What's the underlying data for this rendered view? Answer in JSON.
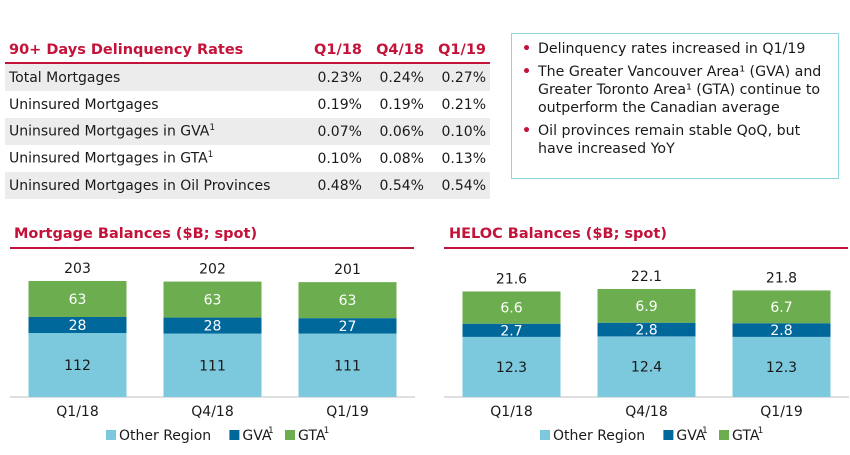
{
  "table": {
    "title": "90+ Days Delinquency Rates",
    "columns": [
      "Q1/18",
      "Q4/18",
      "Q1/19"
    ],
    "rows": [
      {
        "label": "Total Mortgages",
        "sup": "",
        "values": [
          "0.23%",
          "0.24%",
          "0.27%"
        ]
      },
      {
        "label": "Uninsured Mortgages",
        "sup": "",
        "values": [
          "0.19%",
          "0.19%",
          "0.21%"
        ]
      },
      {
        "label": "Uninsured Mortgages in GVA",
        "sup": "1",
        "values": [
          "0.07%",
          "0.06%",
          "0.10%"
        ]
      },
      {
        "label": "Uninsured Mortgages in GTA",
        "sup": "1",
        "values": [
          "0.10%",
          "0.08%",
          "0.13%"
        ]
      },
      {
        "label": "Uninsured Mortgages in Oil Provinces",
        "sup": "",
        "values": [
          "0.48%",
          "0.54%",
          "0.54%"
        ]
      }
    ]
  },
  "callout": {
    "bullet_glyph": "•",
    "bullets": [
      [
        "Delinquency rates increased in Q1/19"
      ],
      [
        "The Greater Vancouver Area¹ (GVA) and",
        "Greater Toronto Area¹ (GTA) continue to",
        "outperform the Canadian average"
      ],
      [
        "Oil provinces remain stable QoQ, but",
        "have increased YoY"
      ]
    ]
  },
  "colors": {
    "accent": "#c4133a",
    "other_region": "#7cc8dc",
    "gva": "#00679a",
    "gta": "#6cae4f",
    "callout_border": "#8fd3e3"
  },
  "chart_data": [
    {
      "type": "bar",
      "stacked": true,
      "title": "Mortgage Balances ($B; spot)",
      "categories": [
        "Q1/18",
        "Q4/18",
        "Q1/19"
      ],
      "series": [
        {
          "name": "Other Region",
          "values": [
            112,
            111,
            111
          ]
        },
        {
          "name": "GVA",
          "sup": "1",
          "values": [
            28,
            28,
            27
          ]
        },
        {
          "name": "GTA",
          "sup": "1",
          "values": [
            63,
            63,
            63
          ]
        }
      ],
      "totals": [
        "203",
        "202",
        "201"
      ],
      "labels": [
        [
          "112",
          "111",
          "111"
        ],
        [
          "28",
          "28",
          "27"
        ],
        [
          "63",
          "63",
          "63"
        ]
      ],
      "legend_position": "bottom",
      "grid": false
    },
    {
      "type": "bar",
      "stacked": true,
      "title": "HELOC Balances ($B; spot)",
      "categories": [
        "Q1/18",
        "Q4/18",
        "Q1/19"
      ],
      "series": [
        {
          "name": "Other Region",
          "values": [
            12.3,
            12.4,
            12.3
          ]
        },
        {
          "name": "GVA",
          "sup": "1",
          "values": [
            2.7,
            2.8,
            2.8
          ]
        },
        {
          "name": "GTA",
          "sup": "1",
          "values": [
            6.6,
            6.9,
            6.7
          ]
        }
      ],
      "totals": [
        "21.6",
        "22.1",
        "21.8"
      ],
      "labels": [
        [
          "12.3",
          "12.4",
          "12.3"
        ],
        [
          "2.7",
          "2.8",
          "2.8"
        ],
        [
          "6.6",
          "6.9",
          "6.7"
        ]
      ],
      "legend_position": "bottom",
      "grid": false
    }
  ]
}
